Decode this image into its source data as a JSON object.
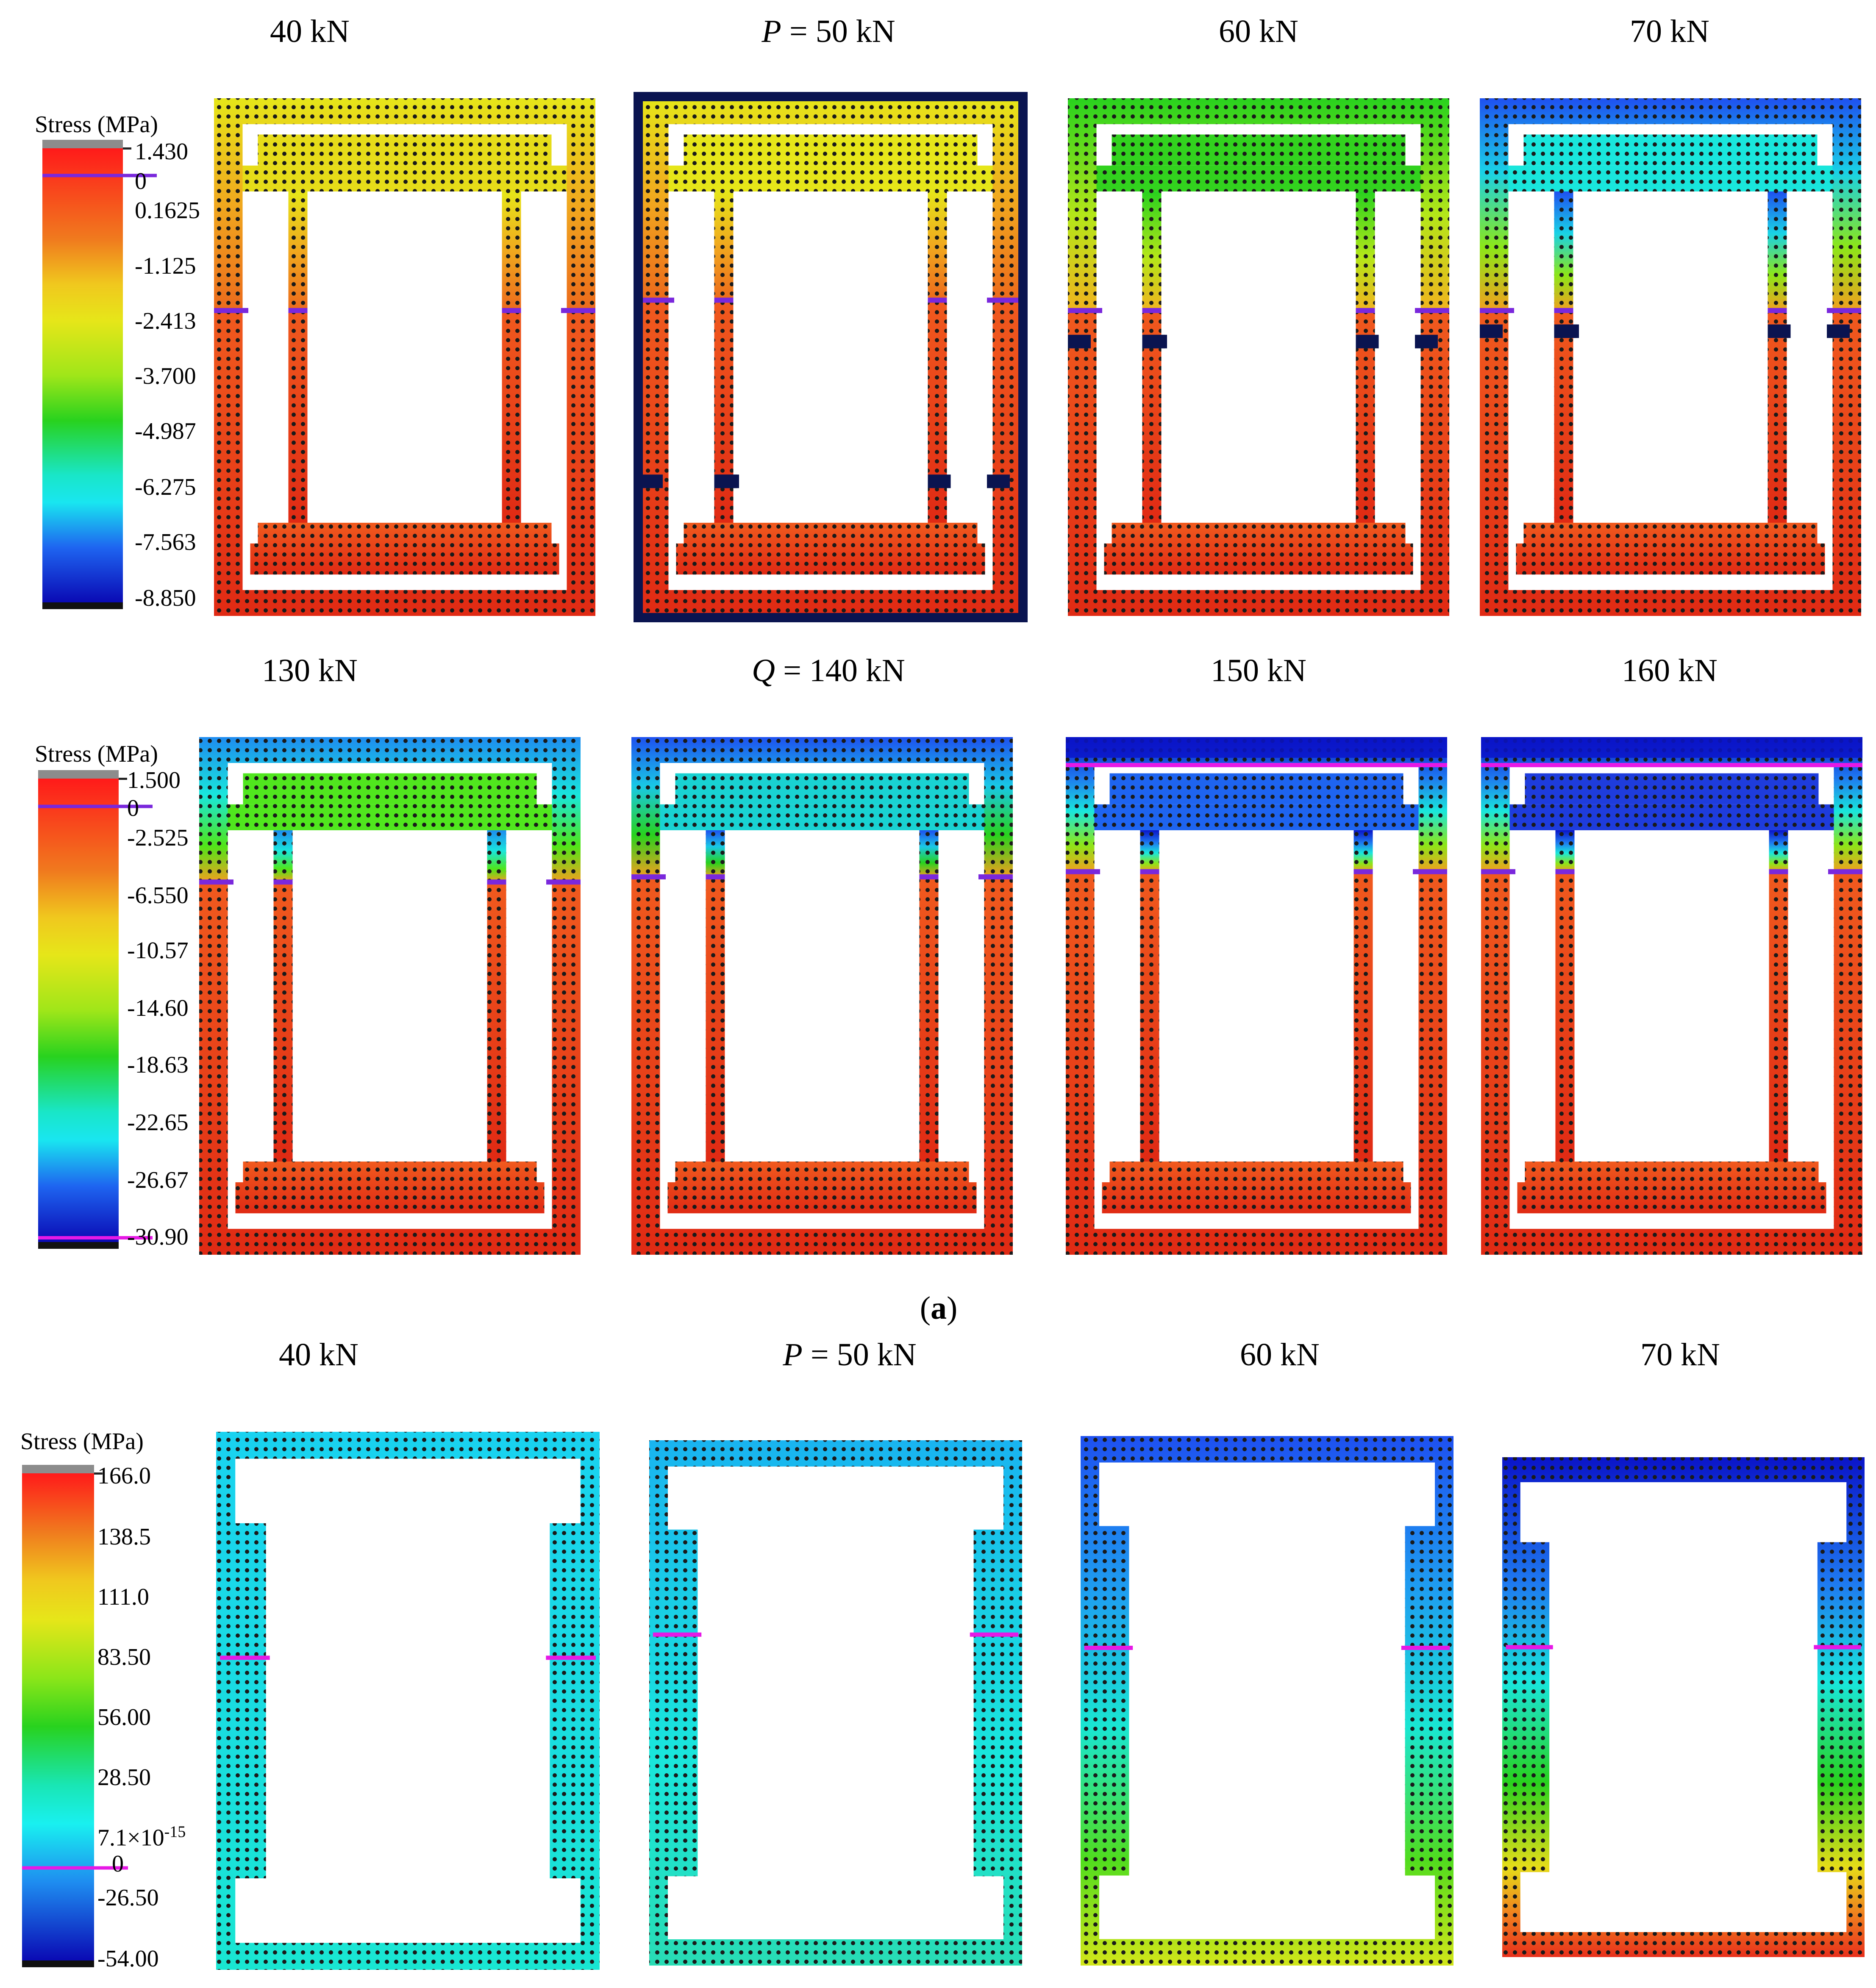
{
  "figure": {
    "caption_label": "a",
    "row1": {
      "legend": {
        "title": "Stress (MPa)",
        "ticks": [
          "1.430",
          "0",
          "0.1625",
          "-1.125",
          "-2.413",
          "-3.700",
          "-4.987",
          "-6.275",
          "-7.563",
          "-8.850"
        ]
      },
      "panels": [
        {
          "prefix": "",
          "label": "40 kN"
        },
        {
          "prefix": "P",
          "label": " = 50 kN"
        },
        {
          "prefix": "",
          "label": "60 kN"
        },
        {
          "prefix": "",
          "label": "70 kN"
        }
      ]
    },
    "row2": {
      "legend": {
        "title": "Stress (MPa)",
        "ticks": [
          "1.500",
          "0",
          "-2.525",
          "-6.550",
          "-10.57",
          "-14.60",
          "-18.63",
          "-22.65",
          "-26.67",
          "-30.90"
        ]
      },
      "panels": [
        {
          "prefix": "",
          "label": "130 kN"
        },
        {
          "prefix": "Q",
          "label": " = 140 kN"
        },
        {
          "prefix": "",
          "label": "150 kN"
        },
        {
          "prefix": "",
          "label": "160 kN"
        }
      ]
    },
    "row3": {
      "legend": {
        "title": "Stress (MPa)",
        "ticks": [
          "166.0",
          "138.5",
          "111.0",
          "83.50",
          "56.00",
          "28.50",
          "7.1×10",
          "0",
          "-26.50",
          "-54.00"
        ],
        "exponent": "-15"
      },
      "panels": [
        {
          "prefix": "",
          "label": "40 kN"
        },
        {
          "prefix": "P",
          "label": " = 50 kN"
        },
        {
          "prefix": "",
          "label": "60 kN"
        },
        {
          "prefix": "",
          "label": "70 kN"
        }
      ]
    }
  },
  "colors": {
    "red": "#e8301c",
    "orange": "#f07a1e",
    "yellow": "#e6e619",
    "green": "#28d21e",
    "cyan": "#19e6e6",
    "blue": "#1e50f0",
    "deepblue": "#0a14c8",
    "navy": "#0a1450",
    "purple": "#7a28dc",
    "magenta": "#e619e6",
    "grey": "#8c8c8c"
  }
}
